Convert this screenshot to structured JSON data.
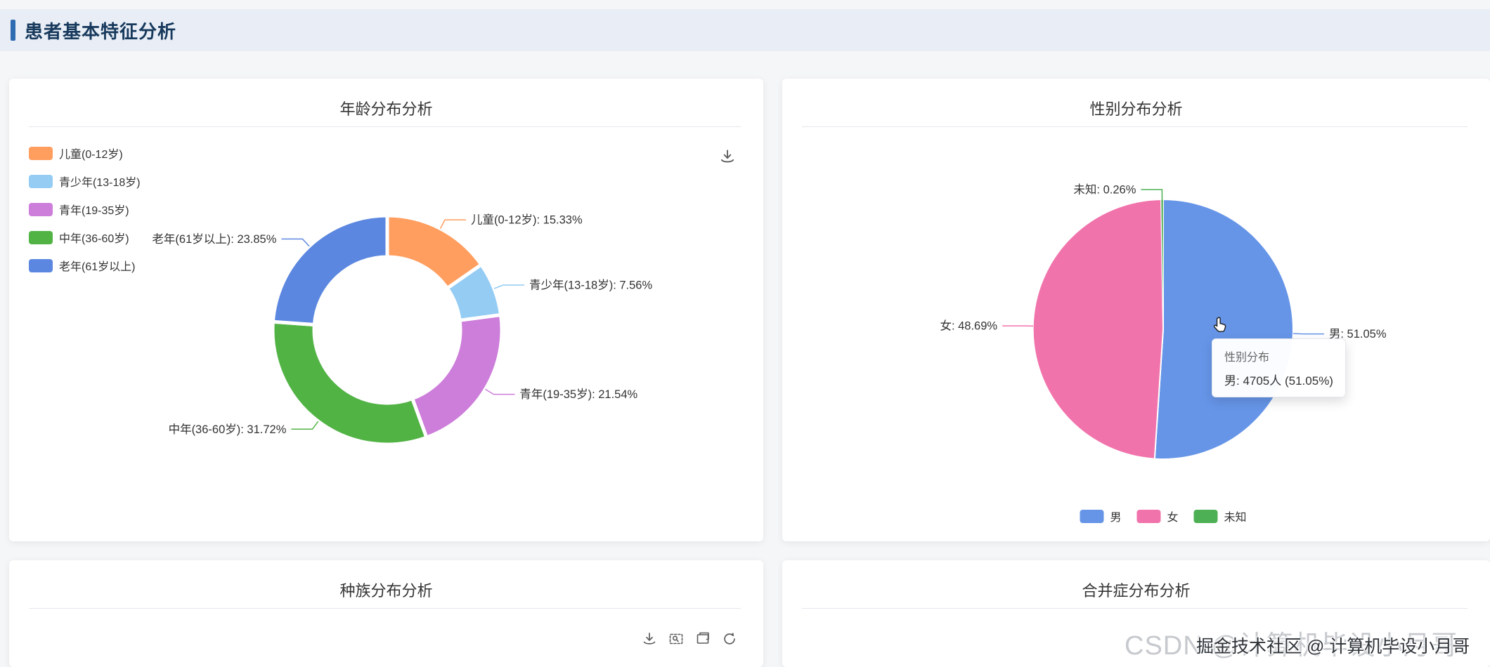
{
  "header": {
    "title": "患者基本特征分析"
  },
  "cards": {
    "age": {
      "title": "年龄分布分析"
    },
    "gender": {
      "title": "性别分布分析",
      "tooltip": {
        "title": "性别分布",
        "value_line": "男: 4705人 (51.05%)"
      }
    },
    "race": {
      "title": "种族分布分析"
    },
    "comorbidity": {
      "title": "合并症分布分析"
    }
  },
  "watermarks": {
    "background_text": "CSDN @计算机毕设小月哥",
    "foreground_text": "掘金技术社区 @ 计算机毕设小月哥"
  },
  "chart_data": [
    {
      "type": "pie",
      "variant": "donut",
      "title": "年龄分布分析",
      "labels": [
        "儿童(0-12岁)",
        "青少年(13-18岁)",
        "青年(19-35岁)",
        "中年(36-60岁)",
        "老年(61岁以上)"
      ],
      "values": [
        15.33,
        7.56,
        21.54,
        31.72,
        23.85
      ],
      "unit": "%",
      "colors": [
        "#ff9e5f",
        "#94ccf4",
        "#cd7dda",
        "#52b345",
        "#5c87e0"
      ],
      "legend_position": "left",
      "label_format": "{name}: {value}%",
      "start_angle_deg": 0,
      "direction": "clockwise"
    },
    {
      "type": "pie",
      "title": "性别分布分析",
      "labels": [
        "男",
        "女",
        "未知"
      ],
      "values": [
        51.05,
        48.69,
        0.26
      ],
      "unit": "%",
      "colors": [
        "#6695e8",
        "#f173ab",
        "#4db054"
      ],
      "legend_position": "bottom",
      "label_format": "{name}: {value}%",
      "hover_annotation": "男: 4705人 (51.05%)",
      "start_angle_deg": 0,
      "direction": "clockwise"
    }
  ]
}
